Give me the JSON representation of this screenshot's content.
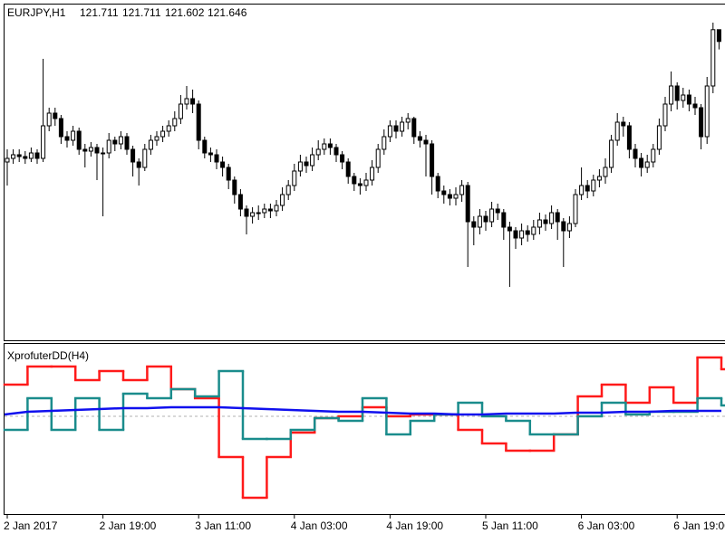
{
  "chart_data": [
    {
      "type": "candlestick",
      "title": "EURJPY,H1",
      "categories": [
        "2 Jan 2017",
        null,
        null,
        null,
        null,
        null,
        null,
        null,
        null,
        null,
        null,
        null,
        null,
        null,
        null,
        null,
        "2 Jan 19:00",
        null,
        null,
        null,
        null,
        null,
        null,
        null,
        null,
        null,
        null,
        null,
        null,
        null,
        null,
        null,
        "3 Jan 11:00",
        null,
        null,
        null,
        null,
        null,
        null,
        null,
        null,
        null,
        null,
        null,
        null,
        null,
        null,
        null,
        "4 Jan 03:00",
        null,
        null,
        null,
        null,
        null,
        null,
        null,
        null,
        null,
        null,
        null,
        null,
        null,
        null,
        null,
        "4 Jan 19:00",
        null,
        null,
        null,
        null,
        null,
        null,
        null,
        null,
        null,
        null,
        null,
        null,
        null,
        null,
        null,
        "5 Jan 11:00",
        null,
        null,
        null,
        null,
        null,
        null,
        null,
        null,
        null,
        null,
        null,
        null,
        null,
        null,
        null,
        "6 Jan 03:00",
        null,
        null,
        null,
        null,
        null,
        null,
        null,
        null,
        null,
        null,
        null,
        null,
        null,
        null,
        null,
        "6 Jan 19:00",
        null,
        null,
        null,
        null,
        null,
        null,
        null
      ],
      "open": [
        120.98,
        121.0,
        121.02,
        121.01,
        121.0,
        121.03,
        121.0,
        121.18,
        121.25,
        121.22,
        121.12,
        121.1,
        121.15,
        121.05,
        121.04,
        121.06,
        121.03,
        121.03,
        121.1,
        121.08,
        121.12,
        121.05,
        120.98,
        120.95,
        121.05,
        121.1,
        121.12,
        121.15,
        121.18,
        121.22,
        121.3,
        121.33,
        121.3,
        121.1,
        121.03,
        121.02,
        120.98,
        120.95,
        120.88,
        120.8,
        120.72,
        120.68,
        120.7,
        120.7,
        120.72,
        120.71,
        120.74,
        120.8,
        120.85,
        120.93,
        120.98,
        120.96,
        121.02,
        121.05,
        121.08,
        121.06,
        121.02,
        120.98,
        120.9,
        120.86,
        120.85,
        120.88,
        120.95,
        121.05,
        121.12,
        121.18,
        121.15,
        121.2,
        121.22,
        121.12,
        121.1,
        121.08,
        120.9,
        120.82,
        120.8,
        120.78,
        120.8,
        120.85,
        120.65,
        120.62,
        120.68,
        120.65,
        120.72,
        120.7,
        120.62,
        120.6,
        120.56,
        120.6,
        120.58,
        120.62,
        120.66,
        120.64,
        120.7,
        120.65,
        120.6,
        120.64,
        120.8,
        120.85,
        120.82,
        120.88,
        120.9,
        120.95,
        121.1,
        121.2,
        121.18,
        121.05,
        121.0,
        120.95,
        120.98,
        121.05,
        121.18,
        121.3,
        121.4,
        121.32,
        121.35,
        121.3,
        121.28,
        121.12,
        121.4,
        121.711
      ],
      "high": [
        121.05,
        121.05,
        121.05,
        121.04,
        121.06,
        121.05,
        121.55,
        121.28,
        121.28,
        121.24,
        121.15,
        121.18,
        121.17,
        121.08,
        121.09,
        121.08,
        121.06,
        121.14,
        121.12,
        121.15,
        121.14,
        121.07,
        121.0,
        121.08,
        121.13,
        121.15,
        121.18,
        121.21,
        121.26,
        121.35,
        121.4,
        121.38,
        121.32,
        121.12,
        121.06,
        121.05,
        121.01,
        120.97,
        120.9,
        120.83,
        120.74,
        120.73,
        120.74,
        120.75,
        120.75,
        120.77,
        120.84,
        120.88,
        120.97,
        121.02,
        121.01,
        121.06,
        121.1,
        121.11,
        121.11,
        121.08,
        121.04,
        121.0,
        120.92,
        120.89,
        120.92,
        120.99,
        121.08,
        121.16,
        121.21,
        121.21,
        121.23,
        121.25,
        121.23,
        121.15,
        121.13,
        121.1,
        120.92,
        120.85,
        120.83,
        120.84,
        120.88,
        120.87,
        120.68,
        120.72,
        120.71,
        120.76,
        120.75,
        120.72,
        120.65,
        120.62,
        120.64,
        120.63,
        120.66,
        120.7,
        120.69,
        120.74,
        120.72,
        120.67,
        120.68,
        120.83,
        120.95,
        120.88,
        120.91,
        120.94,
        121.0,
        121.13,
        121.25,
        121.23,
        121.2,
        121.08,
        121.03,
        121.02,
        121.08,
        121.22,
        121.34,
        121.48,
        121.42,
        121.39,
        121.38,
        121.34,
        121.3,
        121.45,
        121.75,
        121.711
      ],
      "low": [
        120.85,
        120.97,
        120.98,
        120.97,
        120.98,
        120.97,
        120.98,
        121.15,
        121.18,
        121.08,
        121.06,
        121.07,
        121.02,
        120.95,
        121.01,
        120.88,
        120.68,
        121.0,
        121.04,
        121.05,
        121.02,
        120.9,
        120.85,
        120.93,
        121.02,
        121.07,
        121.09,
        121.12,
        121.15,
        121.19,
        121.27,
        121.25,
        121.05,
        121.0,
        120.98,
        120.94,
        120.9,
        120.83,
        120.75,
        120.68,
        120.58,
        120.64,
        120.66,
        120.67,
        120.67,
        120.68,
        120.71,
        120.77,
        120.82,
        120.9,
        120.92,
        120.93,
        120.99,
        121.02,
        121.02,
        120.98,
        120.94,
        120.86,
        120.82,
        120.8,
        120.82,
        120.85,
        120.92,
        121.02,
        121.09,
        121.11,
        121.12,
        121.16,
        121.08,
        121.06,
        120.9,
        120.8,
        120.78,
        120.75,
        120.74,
        120.74,
        120.76,
        120.4,
        120.52,
        120.58,
        120.6,
        120.62,
        120.66,
        120.55,
        120.29,
        120.5,
        120.52,
        120.54,
        120.55,
        120.58,
        120.6,
        120.61,
        120.55,
        120.4,
        120.56,
        120.62,
        120.77,
        120.78,
        120.79,
        120.84,
        120.86,
        120.92,
        121.07,
        121.12,
        121.0,
        120.95,
        120.9,
        120.92,
        120.95,
        121.02,
        121.15,
        121.26,
        121.27,
        121.28,
        121.26,
        121.24,
        121.05,
        121.08,
        121.36,
        121.602
      ],
      "close": [
        121.0,
        121.02,
        121.01,
        121.0,
        121.03,
        121.0,
        121.18,
        121.25,
        121.22,
        121.12,
        121.1,
        121.15,
        121.05,
        121.04,
        121.06,
        121.03,
        121.03,
        121.1,
        121.08,
        121.12,
        121.05,
        120.98,
        120.95,
        121.05,
        121.1,
        121.12,
        121.15,
        121.18,
        121.22,
        121.3,
        121.33,
        121.3,
        121.1,
        121.03,
        121.02,
        120.98,
        120.95,
        120.88,
        120.8,
        120.72,
        120.68,
        120.7,
        120.7,
        120.72,
        120.71,
        120.74,
        120.8,
        120.85,
        120.93,
        120.98,
        120.96,
        121.02,
        121.05,
        121.08,
        121.06,
        121.02,
        120.98,
        120.9,
        120.86,
        120.85,
        120.88,
        120.95,
        121.05,
        121.12,
        121.18,
        121.15,
        121.2,
        121.22,
        121.12,
        121.1,
        121.08,
        120.9,
        120.82,
        120.8,
        120.78,
        120.8,
        120.85,
        120.65,
        120.62,
        120.68,
        120.65,
        120.72,
        120.7,
        120.62,
        120.6,
        120.56,
        120.6,
        120.58,
        120.62,
        120.66,
        120.64,
        120.7,
        120.65,
        120.6,
        120.64,
        120.8,
        120.85,
        120.82,
        120.88,
        120.9,
        120.95,
        121.1,
        121.2,
        121.18,
        121.05,
        121.0,
        120.95,
        120.98,
        121.05,
        121.18,
        121.3,
        121.4,
        121.32,
        121.35,
        121.3,
        121.28,
        121.12,
        121.4,
        121.711,
        121.646
      ],
      "ylim": [
        120.0,
        121.85
      ],
      "up_color": "#ffffff",
      "down_color": "#000000",
      "wick_color": "#000000"
    },
    {
      "type": "line",
      "title": "XprofuterDD(H4)",
      "ylim": [
        -108,
        80
      ],
      "level": 0,
      "level_color": "#b0b0b0",
      "series": [
        {
          "color": "#ff1a1a",
          "step": true,
          "values": [
            35,
            55,
            55,
            40,
            50,
            40,
            55,
            30,
            20,
            -45,
            -90,
            -45,
            -18,
            -2,
            0,
            10,
            0,
            2,
            2,
            -15,
            -30,
            -38,
            -38,
            -20,
            22,
            35,
            15,
            32,
            15,
            65,
            52
          ]
        },
        {
          "color": "#1a8c8c",
          "step": true,
          "values": [
            -15,
            20,
            -15,
            20,
            -15,
            25,
            20,
            30,
            22,
            50,
            -25,
            -25,
            -15,
            -2,
            -5,
            20,
            -20,
            -5,
            2,
            15,
            0,
            -5,
            -20,
            -20,
            0,
            15,
            2,
            5,
            5,
            20,
            12
          ]
        },
        {
          "color": "#1010ee",
          "step": false,
          "values": [
            2,
            5,
            6,
            7,
            8,
            9,
            9,
            10,
            10,
            10,
            9,
            8,
            7,
            6,
            5,
            5,
            4,
            3,
            3,
            2,
            2,
            3,
            3,
            3,
            4,
            4,
            5,
            5,
            6,
            6,
            6
          ]
        }
      ]
    }
  ]
}
